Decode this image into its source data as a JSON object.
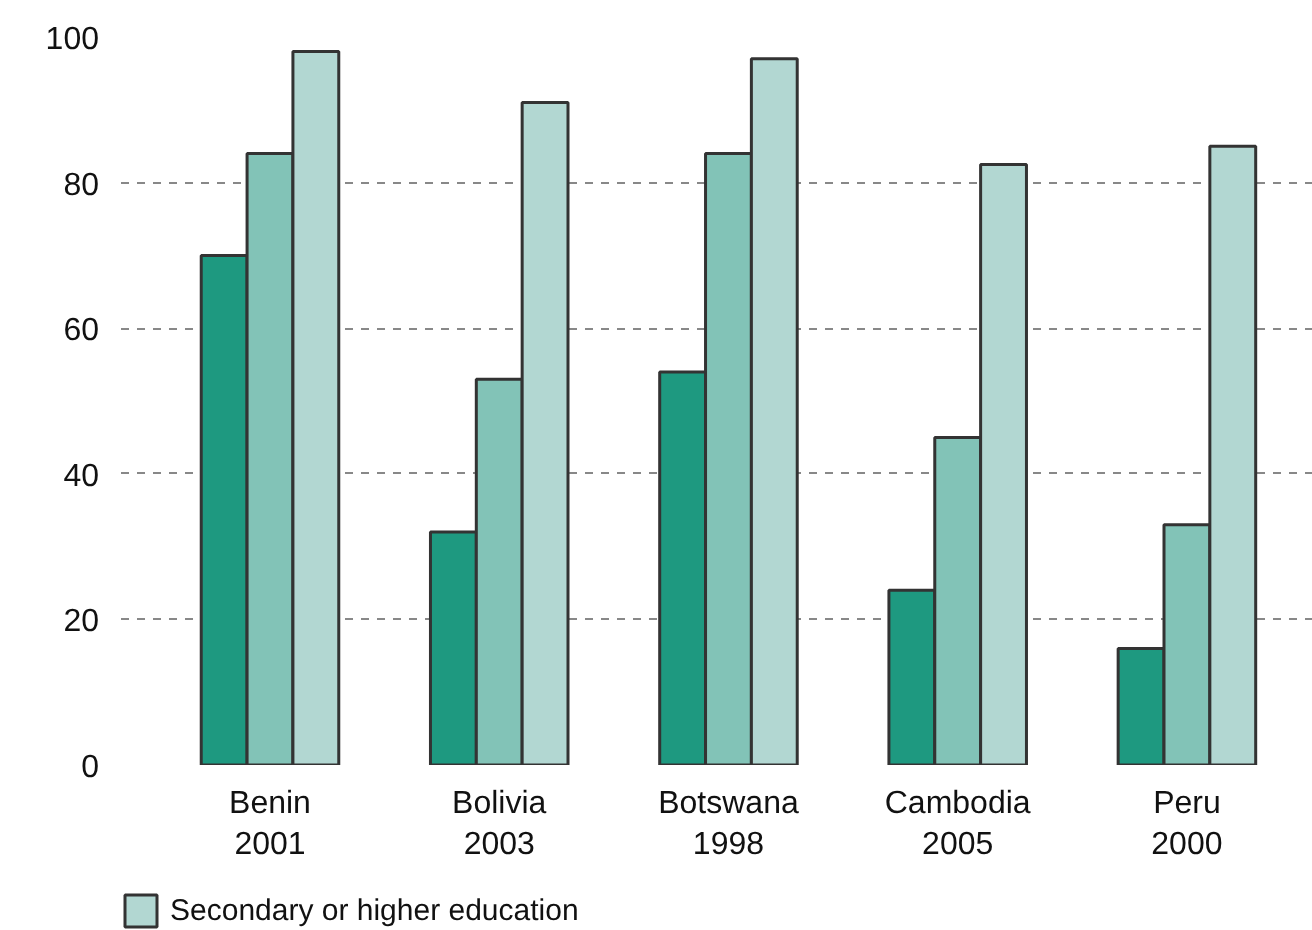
{
  "chart_data": {
    "type": "bar",
    "categories": [
      "Benin\n2001",
      "Bolivia\n2003",
      "Botswana\n1998",
      "Cambodia\n2005",
      "Peru\n2000"
    ],
    "series": [
      {
        "color": "#1e9980",
        "values": [
          70,
          32,
          54,
          24,
          16
        ]
      },
      {
        "color": "#82c3b7",
        "values": [
          84,
          53,
          84,
          45,
          33
        ]
      },
      {
        "name": "Secondary or higher education",
        "color": "#b2d7d2",
        "values": [
          98,
          91,
          97,
          82.5,
          85
        ]
      }
    ],
    "ylim": [
      0,
      100
    ],
    "yticks": [
      0,
      20,
      40,
      60,
      80,
      100
    ],
    "grid": "y",
    "legend": "bottom left"
  }
}
